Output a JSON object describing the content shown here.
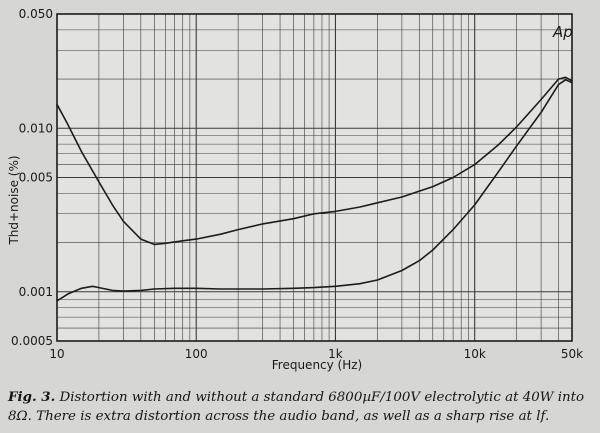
{
  "chart_data": {
    "type": "line",
    "xlabel": "Frequency (Hz)",
    "ylabel": "Thd+noise (%)",
    "x_scale": "log",
    "y_scale": "log",
    "xlim": [
      10,
      50000
    ],
    "ylim": [
      0.0005,
      0.05
    ],
    "grid": true,
    "legend": "none",
    "x_ticks": [
      {
        "value": 10,
        "label": "10"
      },
      {
        "value": 100,
        "label": "100"
      },
      {
        "value": 1000,
        "label": "1k"
      },
      {
        "value": 10000,
        "label": "10k"
      },
      {
        "value": 50000,
        "label": "50k"
      }
    ],
    "y_ticks": [
      {
        "value": 0.05,
        "label": "0.050"
      },
      {
        "value": 0.01,
        "label": "0.010"
      },
      {
        "value": 0.005,
        "label": "0.005"
      },
      {
        "value": 0.001,
        "label": "0.001"
      },
      {
        "value": 0.0005,
        "label": "0.0005"
      }
    ],
    "series": [
      {
        "x": [
          10,
          12,
          15,
          20,
          25,
          30,
          40,
          50,
          60,
          80,
          100,
          150,
          200,
          300,
          500,
          700,
          1000,
          1500,
          2000,
          3000,
          5000,
          7000,
          10000,
          15000,
          20000,
          30000,
          40000,
          45000,
          50000
        ],
        "y": [
          0.014,
          0.0105,
          0.0072,
          0.0047,
          0.0034,
          0.0027,
          0.0021,
          0.00195,
          0.00198,
          0.00205,
          0.0021,
          0.00225,
          0.0024,
          0.0026,
          0.0028,
          0.003,
          0.0031,
          0.0033,
          0.0035,
          0.0038,
          0.0044,
          0.005,
          0.006,
          0.008,
          0.0102,
          0.015,
          0.02,
          0.0205,
          0.0195
        ]
      },
      {
        "x": [
          10,
          12,
          15,
          18,
          20,
          25,
          30,
          40,
          50,
          70,
          100,
          150,
          200,
          300,
          500,
          700,
          1000,
          1500,
          2000,
          3000,
          4000,
          5000,
          7000,
          10000,
          15000,
          20000,
          30000,
          40000,
          45000,
          50000
        ],
        "y": [
          0.00088,
          0.00097,
          0.00105,
          0.00108,
          0.00106,
          0.00102,
          0.00101,
          0.00102,
          0.00104,
          0.00105,
          0.00105,
          0.00104,
          0.00104,
          0.00104,
          0.00105,
          0.00106,
          0.00108,
          0.00112,
          0.00118,
          0.00135,
          0.00155,
          0.0018,
          0.0024,
          0.0034,
          0.0055,
          0.0078,
          0.0125,
          0.0185,
          0.0198,
          0.019
        ]
      }
    ],
    "annotation": "Ap"
  },
  "caption": {
    "fig_label": "Fig. 3.",
    "text": "Distortion with and without a standard 6800µF/100V electrolytic at 40W into 8Ω. There is extra distortion across the audio band, as well as a sharp rise at lf."
  },
  "colors": {
    "background": "#d6d6d2",
    "plot_background": "#e2e2de",
    "line": "#1c1c1c",
    "grid": "#3a3a3a"
  }
}
